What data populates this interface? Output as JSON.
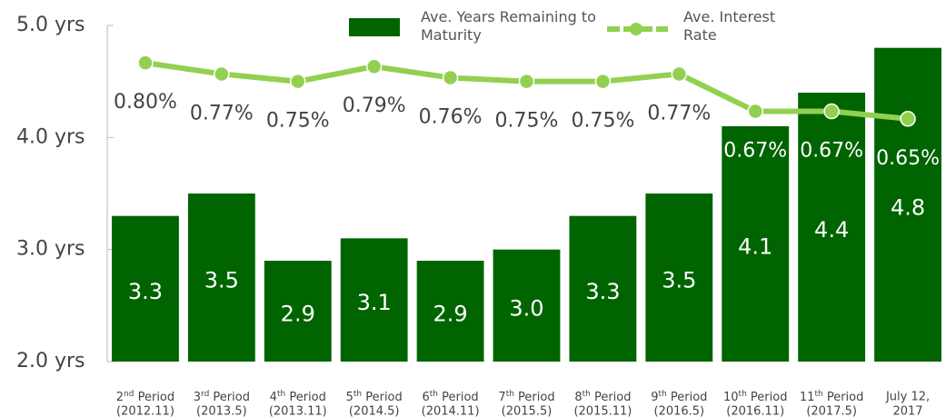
{
  "chart_data": {
    "type": "bar+line",
    "categories": [
      [
        "2nd Period",
        "(2012.11)"
      ],
      [
        "3rd Period",
        "(2013.5)"
      ],
      [
        "4th Period",
        "(2013.11)"
      ],
      [
        "5th Period",
        "(2014.5)"
      ],
      [
        "6th Period",
        "(2014.11)"
      ],
      [
        "7th Period",
        "(2015.5)"
      ],
      [
        "8th Period",
        "(2015.11)"
      ],
      [
        "9th Period",
        "(2016.5)"
      ],
      [
        "10th Period",
        "(2016.11)"
      ],
      [
        "11th Period",
        "(2017.5)"
      ],
      [
        "July 12,",
        "2017"
      ]
    ],
    "series": [
      {
        "name": "Ave. Years Remaining to Maturity",
        "type": "bar",
        "color": "#006400",
        "values": [
          3.3,
          3.5,
          2.9,
          3.1,
          2.9,
          3.0,
          3.3,
          3.5,
          4.1,
          4.4,
          4.8
        ],
        "value_labels": [
          "3.3",
          "3.5",
          "2.9",
          "3.1",
          "2.9",
          "3.0",
          "3.3",
          "3.5",
          "4.1",
          "4.4",
          "4.8"
        ]
      },
      {
        "name": "Ave. Interest Rate",
        "type": "line",
        "axis": "y2",
        "color": "#92d050",
        "values": [
          0.8,
          0.77,
          0.75,
          0.79,
          0.76,
          0.75,
          0.75,
          0.77,
          0.67,
          0.67,
          0.65
        ],
        "value_labels": [
          "0.80%",
          "0.77%",
          "0.75%",
          "0.79%",
          "0.76%",
          "0.75%",
          "0.75%",
          "0.77%",
          "0.67%",
          "0.67%",
          "0.65%"
        ]
      }
    ],
    "ylim": [
      2,
      5
    ],
    "yticks": [
      {
        "value": 2,
        "label": "2.0 yrs"
      },
      {
        "value": 3,
        "label": "3.0 yrs"
      },
      {
        "value": 4,
        "label": "4.0 yrs"
      },
      {
        "value": 5,
        "label": "5.0 yrs"
      }
    ],
    "y2lim": [
      0,
      0.9
    ],
    "legend": "top"
  }
}
